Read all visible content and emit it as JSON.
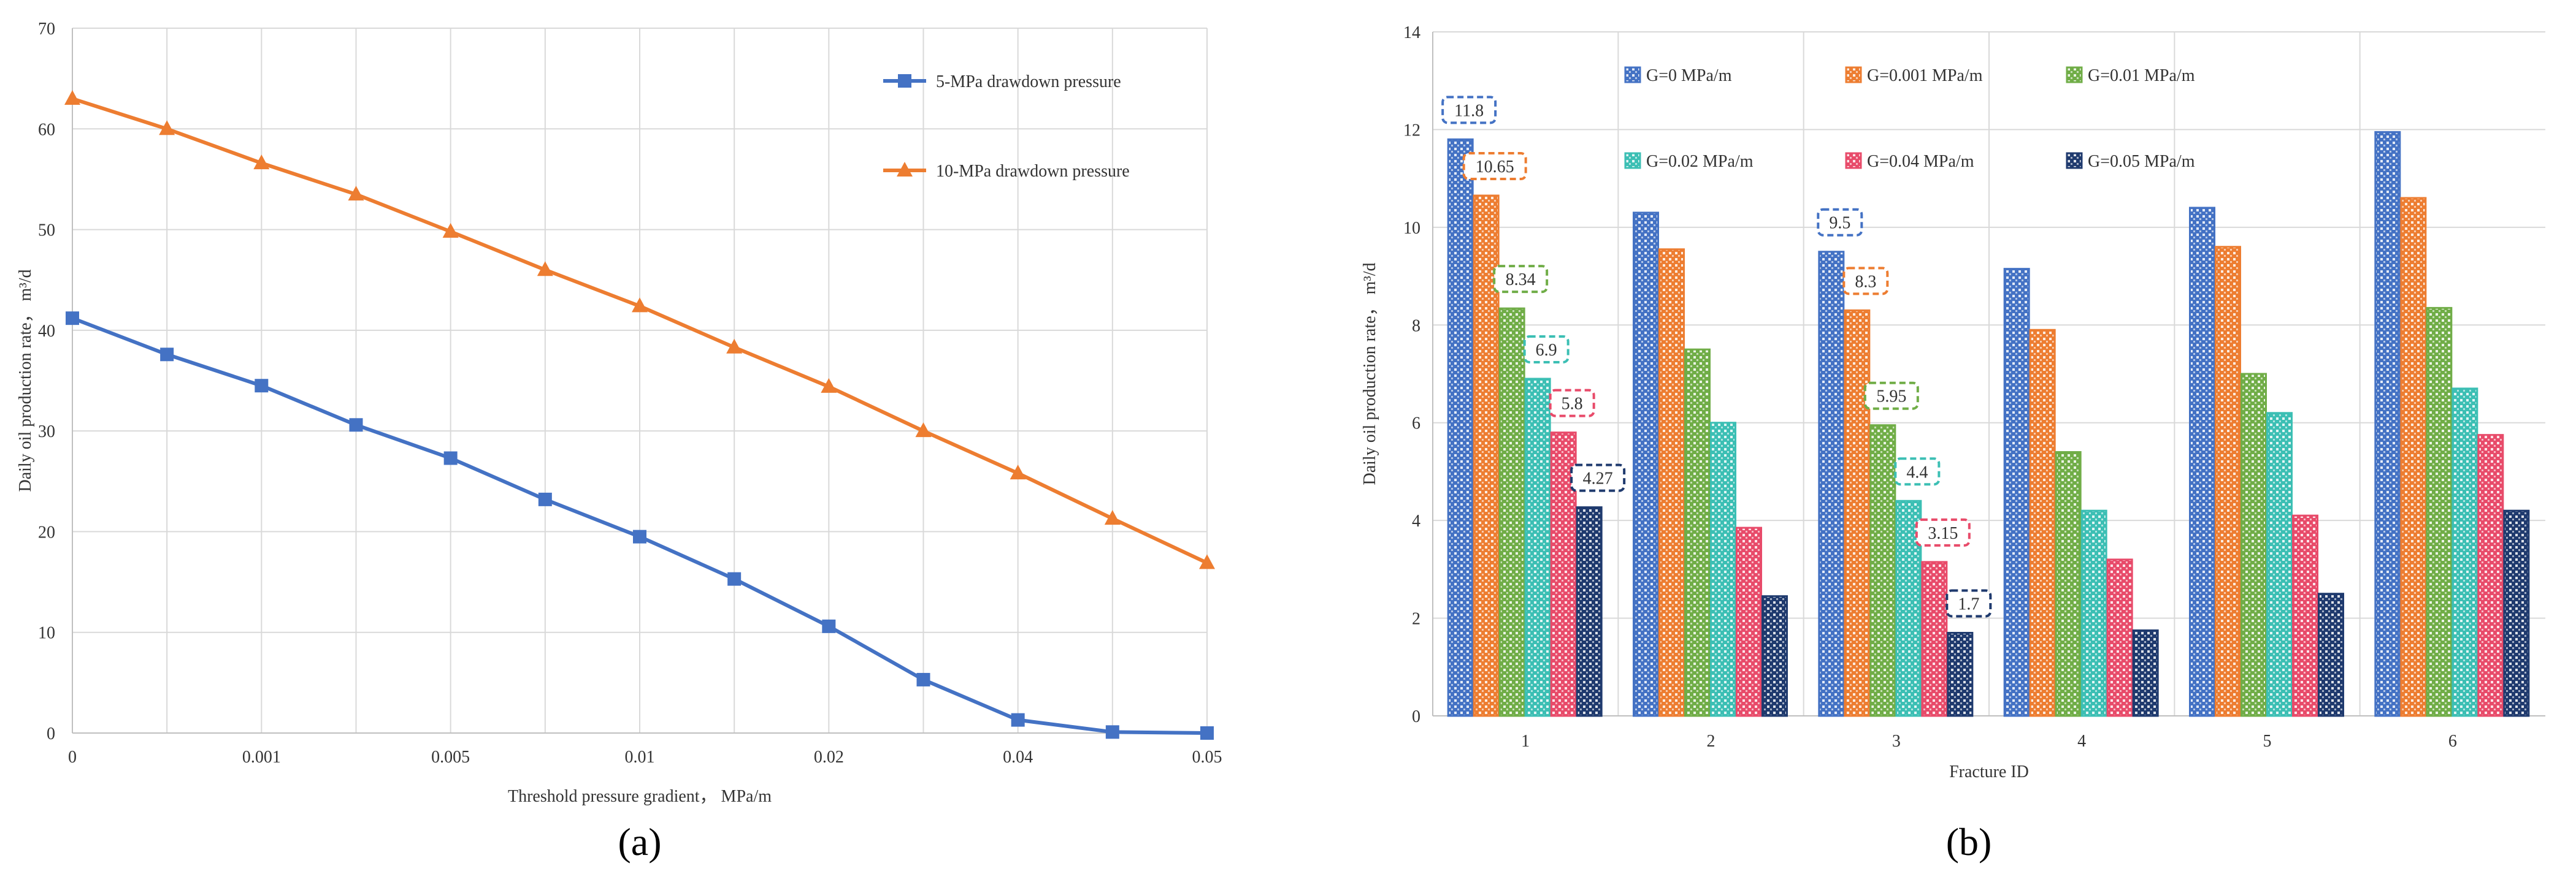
{
  "chart_data": [
    {
      "panel_label": "(a)",
      "type": "line",
      "title": "",
      "xlabel": "Threshold pressure gradient， MPa/m",
      "ylabel": "Daily oil production rate， m³/d",
      "ylim": [
        0,
        70
      ],
      "yticks": [
        0,
        10,
        20,
        30,
        40,
        50,
        60,
        70
      ],
      "x_tick_labels": [
        "0",
        "",
        "0.001",
        "",
        "0.005",
        "",
        "0.01",
        "",
        "0.02",
        "",
        "0.04",
        "",
        "0.05"
      ],
      "grid": true,
      "legend": "top-right",
      "series": [
        {
          "name": "5-MPa drawdown pressure",
          "color": "#4472C4",
          "marker": "square",
          "values": [
            41.2,
            37.6,
            34.5,
            30.6,
            27.3,
            23.2,
            19.5,
            15.3,
            10.6,
            5.3,
            1.3,
            0.1,
            0.0
          ]
        },
        {
          "name": "10-MPa drawdown pressure",
          "color": "#ED7D31",
          "marker": "triangle",
          "values": [
            63.0,
            60.0,
            56.6,
            53.5,
            49.8,
            46.0,
            42.4,
            38.3,
            34.4,
            30.0,
            25.8,
            21.3,
            16.9
          ]
        }
      ]
    },
    {
      "panel_label": "(b)",
      "type": "bar",
      "title": "",
      "xlabel": "Fracture ID",
      "ylabel": "Daily oil production rate， m³/d",
      "ylim": [
        0,
        14
      ],
      "yticks": [
        0,
        2,
        4,
        6,
        8,
        10,
        12,
        14
      ],
      "categories": [
        "1",
        "2",
        "3",
        "4",
        "5",
        "6"
      ],
      "grid": true,
      "legend": "top",
      "series": [
        {
          "name": "G=0 MPa/m",
          "color": "#4472C4",
          "values": [
            11.8,
            10.3,
            9.5,
            9.15,
            10.4,
            11.95
          ]
        },
        {
          "name": "G=0.001 MPa/m",
          "color": "#ED7D31",
          "values": [
            10.65,
            9.55,
            8.3,
            7.9,
            9.6,
            10.6
          ]
        },
        {
          "name": "G=0.01 MPa/m",
          "color": "#70AD47",
          "values": [
            8.34,
            7.5,
            5.95,
            5.4,
            7.0,
            8.35
          ]
        },
        {
          "name": "G=0.02 MPa/m",
          "color": "#3CBFB4",
          "values": [
            6.9,
            6.0,
            4.4,
            4.2,
            6.2,
            6.7
          ]
        },
        {
          "name": "G=0.04 MPa/m",
          "color": "#E84B6A",
          "values": [
            5.8,
            3.85,
            3.15,
            3.2,
            4.1,
            5.75
          ]
        },
        {
          "name": "G=0.05 MPa/m",
          "color": "#1F3A6E",
          "values": [
            4.27,
            2.45,
            1.7,
            1.75,
            2.5,
            4.2
          ]
        }
      ],
      "annotations": [
        {
          "category": "1",
          "series": 0,
          "text": "11.8"
        },
        {
          "category": "1",
          "series": 1,
          "text": "10.65"
        },
        {
          "category": "1",
          "series": 2,
          "text": "8.34"
        },
        {
          "category": "1",
          "series": 3,
          "text": "6.9"
        },
        {
          "category": "1",
          "series": 4,
          "text": "5.8"
        },
        {
          "category": "1",
          "series": 5,
          "text": "4.27"
        },
        {
          "category": "3",
          "series": 0,
          "text": "9.5"
        },
        {
          "category": "3",
          "series": 1,
          "text": "8.3"
        },
        {
          "category": "3",
          "series": 2,
          "text": "5.95"
        },
        {
          "category": "3",
          "series": 3,
          "text": "4.4"
        },
        {
          "category": "3",
          "series": 4,
          "text": "3.15"
        },
        {
          "category": "3",
          "series": 5,
          "text": "1.7"
        }
      ]
    }
  ]
}
